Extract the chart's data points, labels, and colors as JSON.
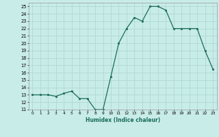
{
  "x": [
    0,
    1,
    2,
    3,
    4,
    5,
    6,
    7,
    8,
    9,
    10,
    11,
    12,
    13,
    14,
    15,
    16,
    17,
    18,
    19,
    20,
    21,
    22,
    23
  ],
  "y": [
    13,
    13,
    13,
    12.8,
    13.2,
    13.5,
    12.5,
    12.5,
    11,
    11,
    15.5,
    20,
    22,
    23.5,
    23,
    25,
    25,
    24.5,
    22,
    22,
    22,
    22,
    19,
    16.5
  ],
  "line_color": "#1a6b5a",
  "marker_color": "#1a6b5a",
  "bg_color": "#c8ece8",
  "grid_color": "#b0d8d4",
  "xlabel": "Humidex (Indice chaleur)",
  "ylim": [
    11,
    25.5
  ],
  "xlim": [
    -0.5,
    23.5
  ],
  "yticks": [
    11,
    12,
    13,
    14,
    15,
    16,
    17,
    18,
    19,
    20,
    21,
    22,
    23,
    24,
    25
  ],
  "xticks": [
    0,
    1,
    2,
    3,
    4,
    5,
    6,
    7,
    8,
    9,
    10,
    11,
    12,
    13,
    14,
    15,
    16,
    17,
    18,
    19,
    20,
    21,
    22,
    23
  ]
}
